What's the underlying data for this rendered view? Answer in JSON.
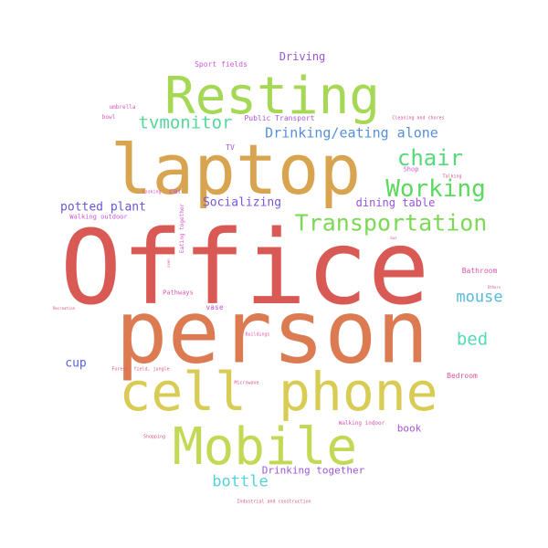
{
  "word_cloud": {
    "words": [
      {
        "text": "Office",
        "color": "#d95a55"
      },
      {
        "text": "person",
        "color": "#dc7a52"
      },
      {
        "text": "laptop",
        "color": "#d9a44f"
      },
      {
        "text": "cell phone",
        "color": "#d9cc55"
      },
      {
        "text": "Mobile",
        "color": "#c2d955"
      },
      {
        "text": "Resting",
        "color": "#a5d955"
      },
      {
        "text": "Transportation",
        "color": "#7dd955"
      },
      {
        "text": "Working",
        "color": "#5ad95e"
      },
      {
        "text": "chair",
        "color": "#55d97a"
      },
      {
        "text": "tvmonitor",
        "color": "#55d99a"
      },
      {
        "text": "Drinking/eating alone",
        "color": "#5590d9"
      },
      {
        "text": "mouse",
        "color": "#55bcd9"
      },
      {
        "text": "bed",
        "color": "#55d9b8"
      },
      {
        "text": "bottle",
        "color": "#55d3d9"
      },
      {
        "text": "potted plant",
        "color": "#6b55d9"
      },
      {
        "text": "Socializing",
        "color": "#7a55d9"
      },
      {
        "text": "dining table",
        "color": "#9555d9"
      },
      {
        "text": "Driving",
        "color": "#9b55d9"
      },
      {
        "text": "cup",
        "color": "#5566d9"
      },
      {
        "text": "Drinking together",
        "color": "#9d55d9"
      },
      {
        "text": "book",
        "color": "#a555d9"
      },
      {
        "text": "Sport fields",
        "color": "#d055d9"
      },
      {
        "text": "Public Transport",
        "color": "#b055d9"
      },
      {
        "text": "TV",
        "color": "#a555d9"
      },
      {
        "text": "car",
        "color": "#c055d9"
      },
      {
        "text": "Walking outdoor",
        "color": "#cc55d9"
      },
      {
        "text": "Eating together",
        "color": "#d955c8"
      },
      {
        "text": "Pathways",
        "color": "#d955b0"
      },
      {
        "text": "vase",
        "color": "#c555d9"
      },
      {
        "text": "Bathroom",
        "color": "#d955a8"
      },
      {
        "text": "Bedroom",
        "color": "#d9559a"
      },
      {
        "text": "umbrella",
        "color": "#d955b8"
      },
      {
        "text": "bowl",
        "color": "#d955c0"
      },
      {
        "text": "Cleaning and chores",
        "color": "#d95590"
      },
      {
        "text": "Talking",
        "color": "#d95580"
      },
      {
        "text": "Shop",
        "color": "#d955d0"
      },
      {
        "text": "Cooking",
        "color": "#d955c4"
      },
      {
        "text": "bus",
        "color": "#d95599"
      },
      {
        "text": "oven",
        "color": "#d955b4"
      },
      {
        "text": "Recreation",
        "color": "#d95570"
      },
      {
        "text": "Others",
        "color": "#d955a0"
      },
      {
        "text": "Buildings",
        "color": "#d955a4"
      },
      {
        "text": "Forest, field, jungle",
        "color": "#d95588"
      },
      {
        "text": "Microwave",
        "color": "#d95590"
      },
      {
        "text": "Walking indoor",
        "color": "#d955b0"
      },
      {
        "text": "Shopping",
        "color": "#d95578"
      },
      {
        "text": "Industrial and construction",
        "color": "#d9558a"
      }
    ]
  }
}
